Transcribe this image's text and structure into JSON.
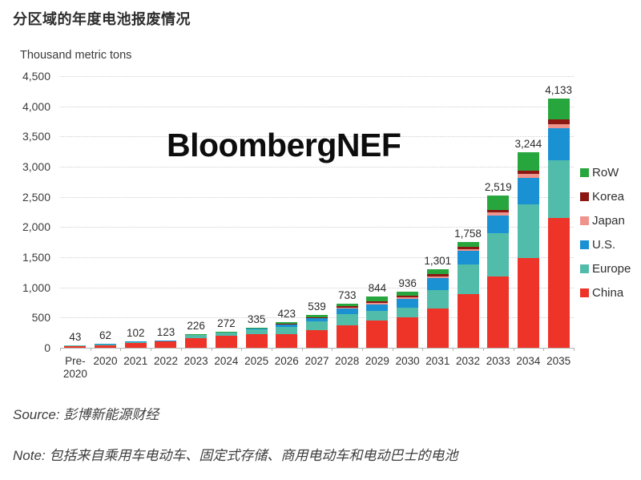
{
  "page": {
    "title": "分区域的年度电池报废情况",
    "watermark": "BloombergNEF",
    "source": "Source: 彭博新能源财经",
    "note": "Note: 包括来自乘用车电动车、固定式存储、商用电动车和电动巴士的电池"
  },
  "chart_data": {
    "type": "bar",
    "stacked": true,
    "title": "分区域的年度电池报废情况",
    "ylabel": "Thousand metric tons",
    "ylim": [
      0,
      4500
    ],
    "ytick_step": 500,
    "ytick_labels": [
      "0",
      "500",
      "1,000",
      "1,500",
      "2,000",
      "2,500",
      "3,000",
      "3,500",
      "4,000",
      "4,500"
    ],
    "grid": "horizontal-dotted",
    "legend_position": "right",
    "categories": [
      "Pre-2020",
      "2020",
      "2021",
      "2022",
      "2023",
      "2024",
      "2025",
      "2026",
      "2027",
      "2028",
      "2029",
      "2030",
      "2031",
      "2032",
      "2033",
      "2034",
      "2035"
    ],
    "tick_labels": [
      "Pre-\n2020",
      "2020",
      "2021",
      "2022",
      "2023",
      "2024",
      "2025",
      "2026",
      "2027",
      "2028",
      "2029",
      "2030",
      "2031",
      "2032",
      "2033",
      "2034",
      "2035"
    ],
    "totals": [
      43,
      62,
      102,
      123,
      226,
      272,
      335,
      423,
      539,
      733,
      844,
      936,
      1301,
      1758,
      2519,
      3244,
      4133
    ],
    "total_labels": [
      "43",
      "62",
      "102",
      "123",
      "226",
      "272",
      "335",
      "423",
      "539",
      "733",
      "844",
      "936",
      "1,301",
      "1,758",
      "2,519",
      "3,244",
      "4,133"
    ],
    "series": [
      {
        "name": "China",
        "color": "#ee3428",
        "values": [
          35,
          52,
          85,
          100,
          165,
          195,
          228,
          230,
          290,
          370,
          455,
          500,
          650,
          890,
          1180,
          1490,
          2150
        ]
      },
      {
        "name": "Europe",
        "color": "#52bcab",
        "values": [
          6,
          7,
          12,
          16,
          44,
          55,
          78,
          120,
          145,
          190,
          160,
          160,
          300,
          495,
          720,
          890,
          950
        ]
      },
      {
        "name": "U.S.",
        "color": "#1991d3",
        "values": [
          1,
          2,
          3,
          4,
          11,
          14,
          20,
          35,
          55,
          85,
          100,
          145,
          200,
          215,
          295,
          437,
          535
        ]
      },
      {
        "name": "Japan",
        "color": "#ef948d",
        "values": [
          0,
          0,
          1,
          1,
          2,
          2,
          2,
          8,
          9,
          20,
          25,
          25,
          34,
          30,
          43,
          60,
          70
        ]
      },
      {
        "name": "Korea",
        "color": "#8c1713",
        "values": [
          1,
          1,
          1,
          1,
          2,
          2,
          3,
          10,
          12,
          30,
          35,
          30,
          37,
          38,
          50,
          62,
          75
        ]
      },
      {
        "name": "RoW",
        "color": "#28a63e",
        "values": [
          0,
          0,
          0,
          1,
          2,
          4,
          4,
          20,
          28,
          38,
          69,
          76,
          80,
          90,
          231,
          305,
          353
        ]
      }
    ],
    "legend_order_top_to_bottom": [
      "RoW",
      "Korea",
      "Japan",
      "U.S.",
      "Europe",
      "China"
    ]
  }
}
